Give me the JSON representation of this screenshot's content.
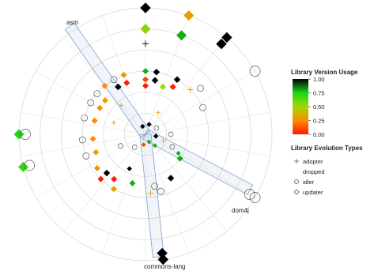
{
  "chart_data": {
    "type": "radial-scatter",
    "title": "",
    "libraries": [
      {
        "name": "asm"
      },
      {
        "name": "dom4j"
      },
      {
        "name": "commons-lang"
      }
    ],
    "color_legend": {
      "title": "Library Version Usage",
      "ticks": [
        "1.00",
        "0.75",
        "0.50",
        "0.25",
        "0.00"
      ],
      "tick_values": [
        1.0,
        0.75,
        0.5,
        0.25,
        0.0
      ],
      "stops": [
        {
          "value": 0.0,
          "color": "#ff1a00"
        },
        {
          "value": 0.25,
          "color": "#ff8c00"
        },
        {
          "value": 0.5,
          "color": "#a0d800"
        },
        {
          "value": 0.75,
          "color": "#18d818"
        },
        {
          "value": 1.0,
          "color": "#000000"
        }
      ]
    },
    "shape_legend": {
      "title": "Library Evolution Types",
      "entries": [
        {
          "label": "adopter",
          "shape": "plus"
        },
        {
          "label": "dropped",
          "shape": "none"
        },
        {
          "label": "idler",
          "shape": "circle"
        },
        {
          "label": "updater",
          "shape": "diamond"
        }
      ]
    },
    "rings": 6,
    "spokes": 18,
    "points": [
      {
        "angle": 0,
        "ring": 6,
        "shape": "diamond",
        "value": 1.0
      },
      {
        "angle": 0,
        "ring": 5,
        "shape": "diamond",
        "value": 0.55
      },
      {
        "angle": 20,
        "ring": 6,
        "shape": "diamond",
        "value": 0.3
      },
      {
        "angle": 20,
        "ring": 5,
        "shape": "diamond",
        "value": 0.8
      },
      {
        "angle": 40,
        "ring": 6,
        "shape": "diamond",
        "value": 1.0
      },
      {
        "angle": 40,
        "ring": 5.6,
        "shape": "diamond",
        "value": 1.0
      },
      {
        "angle": 60,
        "ring": 6,
        "shape": "circle",
        "value": null
      },
      {
        "angle": 0,
        "ring": 3,
        "shape": "diamond",
        "value": 0.8
      },
      {
        "angle": 0,
        "ring": 2.6,
        "shape": "diamond",
        "value": 0.1
      },
      {
        "angle": 0,
        "ring": 2.3,
        "shape": "diamond",
        "value": 0.0
      },
      {
        "angle": 10,
        "ring": 3,
        "shape": "diamond",
        "value": 1.0
      },
      {
        "angle": 10,
        "ring": 2.6,
        "shape": "diamond",
        "value": 1.0
      },
      {
        "angle": 20,
        "ring": 2.4,
        "shape": "diamond",
        "value": 0.5
      },
      {
        "angle": 30,
        "ring": 3,
        "shape": "diamond",
        "value": 1.0
      },
      {
        "angle": 30,
        "ring": 2.6,
        "shape": "diamond",
        "value": 0.0
      },
      {
        "angle": 45,
        "ring": 3,
        "shape": "plus",
        "value": 0.3
      },
      {
        "angle": 50,
        "ring": 3.4,
        "shape": "circle",
        "value": null
      },
      {
        "angle": 65,
        "ring": 3,
        "shape": "circle",
        "value": null
      },
      {
        "angle": -20,
        "ring": 3,
        "shape": "diamond",
        "value": 0.3
      },
      {
        "angle": -20,
        "ring": 2.6,
        "shape": "diamond",
        "value": 0.0
      },
      {
        "angle": -30,
        "ring": 3,
        "shape": "circle",
        "value": null
      },
      {
        "angle": -30,
        "ring": 2.6,
        "shape": "diamond",
        "value": 1.0
      },
      {
        "angle": -40,
        "ring": 3,
        "shape": "diamond",
        "value": 0.25
      },
      {
        "angle": -50,
        "ring": 3,
        "shape": "circle",
        "value": null
      },
      {
        "angle": -50,
        "ring": 2.5,
        "shape": "diamond",
        "value": 0.3
      },
      {
        "angle": -60,
        "ring": 3,
        "shape": "circle",
        "value": null
      },
      {
        "angle": -60,
        "ring": 2.5,
        "shape": "diamond",
        "value": 0.25
      },
      {
        "angle": -75,
        "ring": 3,
        "shape": "circle",
        "value": null
      },
      {
        "angle": -75,
        "ring": 2.5,
        "shape": "diamond",
        "value": 0.25
      },
      {
        "angle": -95,
        "ring": 3,
        "shape": "circle",
        "value": null
      },
      {
        "angle": -95,
        "ring": 2.5,
        "shape": "diamond",
        "value": 0.25
      },
      {
        "angle": -110,
        "ring": 3,
        "shape": "circle",
        "value": null
      },
      {
        "angle": -110,
        "ring": 2.5,
        "shape": "diamond",
        "value": 0.3
      },
      {
        "angle": -125,
        "ring": 2.8,
        "shape": "diamond",
        "value": 0.3
      },
      {
        "angle": -135,
        "ring": 3,
        "shape": "diamond",
        "value": 0.0
      },
      {
        "angle": -135,
        "ring": 2.6,
        "shape": "diamond",
        "value": 1.0
      },
      {
        "angle": -145,
        "ring": 2.6,
        "shape": "diamond",
        "value": 0.0
      },
      {
        "angle": -150,
        "ring": 3,
        "shape": "diamond",
        "value": 0.3
      },
      {
        "angle": -165,
        "ring": 2.4,
        "shape": "diamond",
        "value": 0.8
      },
      {
        "angle": -155,
        "ring": 1.8,
        "shape": "diamond",
        "value": 1.0
      },
      {
        "angle": 150,
        "ring": 2.4,
        "shape": "diamond",
        "value": 1.0
      },
      {
        "angle": 165,
        "ring": 2.8,
        "shape": "circle",
        "value": null
      },
      {
        "angle": 175,
        "ring": 2.8,
        "shape": "plus",
        "value": 0.3
      },
      {
        "angle": 170,
        "ring": 2.5,
        "shape": "circle",
        "value": null
      },
      {
        "angle": 125,
        "ring": 2.0,
        "shape": "diamond",
        "value": 0.8
      },
      {
        "angle": 120,
        "ring": 1.8,
        "shape": "diamond",
        "value": 0.8
      },
      {
        "angle": 115,
        "ring": 1.4,
        "shape": "circle",
        "value": null
      },
      {
        "angle": -90,
        "ring": 6,
        "shape": "diamond",
        "value": 0.75
      },
      {
        "angle": -90,
        "ring": 5.7,
        "shape": "circle",
        "value": null
      },
      {
        "angle": -105,
        "ring": 6,
        "shape": "diamond",
        "value": 0.7
      },
      {
        "angle": -105,
        "ring": 5.7,
        "shape": "circle",
        "value": null
      },
      {
        "angle": 172,
        "ring": 6,
        "shape": "diamond",
        "value": 1.0
      },
      {
        "angle": 172,
        "ring": 5.7,
        "shape": "diamond",
        "value": 1.0
      },
      {
        "angle": 120,
        "ring": 6,
        "shape": "circle",
        "value": null
      },
      {
        "angle": 120,
        "ring": 5.7,
        "shape": "circle",
        "value": null
      },
      {
        "angle": 30,
        "ring": 1.2,
        "shape": "plus",
        "value": 0.3
      },
      {
        "angle": -40,
        "ring": 1.8,
        "shape": "plus",
        "value": 0.3
      },
      {
        "angle": -70,
        "ring": 1.6,
        "shape": "plus",
        "value": 0.3
      },
      {
        "angle": -115,
        "ring": 1.3,
        "shape": "circle",
        "value": null
      },
      {
        "angle": 90,
        "ring": 1.2,
        "shape": "circle",
        "value": null
      },
      {
        "angle": 60,
        "ring": 0.6,
        "shape": "circle",
        "value": null
      },
      {
        "angle": 100,
        "ring": 0.5,
        "shape": "diamond",
        "value": 1.0
      },
      {
        "angle": 140,
        "ring": 0.7,
        "shape": "diamond",
        "value": 0.8
      },
      {
        "angle": 155,
        "ring": 0.4,
        "shape": "diamond",
        "value": 0.8
      },
      {
        "angle": -170,
        "ring": 0.5,
        "shape": "diamond",
        "value": 0.1
      },
      {
        "angle": 110,
        "ring": 0.9,
        "shape": "plus",
        "value": 0.3
      },
      {
        "angle": -140,
        "ring": 0.8,
        "shape": "circle",
        "value": null
      },
      {
        "angle": 20,
        "ring": 0.5,
        "shape": "diamond",
        "value": 1.0
      },
      {
        "angle": -20,
        "ring": 0.4,
        "shape": "diamond",
        "value": 1.0
      },
      {
        "angle": 0,
        "ring": 4.3,
        "shape": "plus",
        "value": 1.0
      }
    ]
  }
}
